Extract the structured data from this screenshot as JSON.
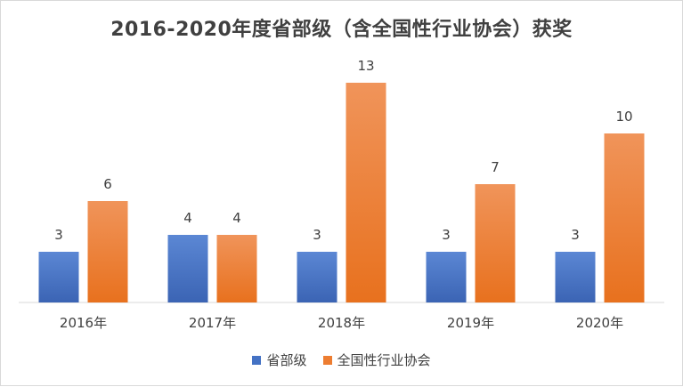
{
  "chart_data": {
    "type": "bar",
    "title": "2016-2020年度省部级（含全国性行业协会）获奖",
    "categories": [
      "2016年",
      "2017年",
      "2018年",
      "2019年",
      "2020年"
    ],
    "series": [
      {
        "name": "省部级",
        "values": [
          3,
          4,
          3,
          3,
          3
        ],
        "color": "#4472c4"
      },
      {
        "name": "全国性行业协会",
        "values": [
          6,
          4,
          13,
          7,
          10
        ],
        "color": "#ed7d31"
      }
    ],
    "ylim": [
      0,
      13
    ],
    "grid": false,
    "legend": "bottom"
  }
}
